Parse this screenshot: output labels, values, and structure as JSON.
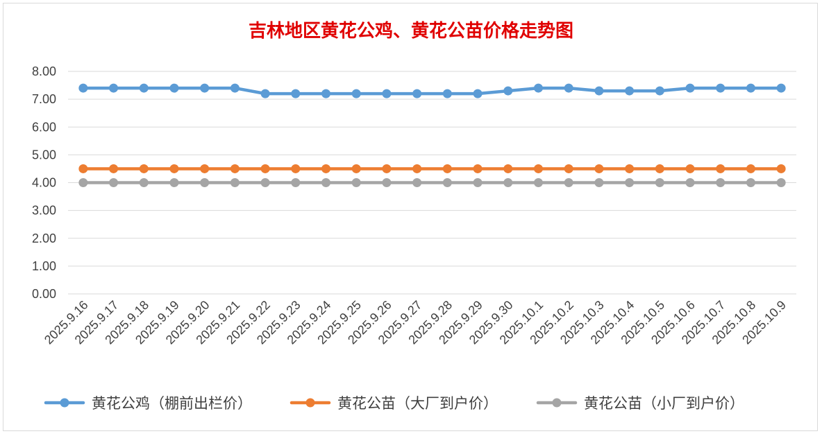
{
  "chart_data": {
    "type": "line",
    "title": "吉林地区黄花公鸡、黄花公苗价格走势图",
    "categories": [
      "2025.9.16",
      "2025.9.17",
      "2025.9.18",
      "2025.9.19",
      "2025.9.20",
      "2025.9.21",
      "2025.9.22",
      "2025.9.23",
      "2025.9.24",
      "2025.9.25",
      "2025.9.26",
      "2025.9.27",
      "2025.9.28",
      "2025.9.29",
      "2025.9.30",
      "2025.10.1",
      "2025.10.2",
      "2025.10.3",
      "2025.10.4",
      "2025.10.5",
      "2025.10.6",
      "2025.10.7",
      "2025.10.8",
      "2025.10.9"
    ],
    "ylim": [
      0,
      8
    ],
    "yticks": [
      "0.00",
      "1.00",
      "2.00",
      "3.00",
      "4.00",
      "5.00",
      "6.00",
      "7.00",
      "8.00"
    ],
    "grid": true,
    "legend_position": "bottom",
    "series": [
      {
        "name": "黄花公鸡（棚前出栏价）",
        "color": "#5b9bd5",
        "values": [
          7.4,
          7.4,
          7.4,
          7.4,
          7.4,
          7.4,
          7.2,
          7.2,
          7.2,
          7.2,
          7.2,
          7.2,
          7.2,
          7.2,
          7.3,
          7.4,
          7.4,
          7.3,
          7.3,
          7.3,
          7.4,
          7.4,
          7.4,
          7.4
        ]
      },
      {
        "name": "黄花公苗（大厂到户价）",
        "color": "#ed7d31",
        "values": [
          4.5,
          4.5,
          4.5,
          4.5,
          4.5,
          4.5,
          4.5,
          4.5,
          4.5,
          4.5,
          4.5,
          4.5,
          4.5,
          4.5,
          4.5,
          4.5,
          4.5,
          4.5,
          4.5,
          4.5,
          4.5,
          4.5,
          4.5,
          4.5
        ]
      },
      {
        "name": "黄花公苗（小厂到户价）",
        "color": "#a5a5a5",
        "values": [
          4.0,
          4.0,
          4.0,
          4.0,
          4.0,
          4.0,
          4.0,
          4.0,
          4.0,
          4.0,
          4.0,
          4.0,
          4.0,
          4.0,
          4.0,
          4.0,
          4.0,
          4.0,
          4.0,
          4.0,
          4.0,
          4.0,
          4.0,
          4.0
        ]
      }
    ]
  }
}
